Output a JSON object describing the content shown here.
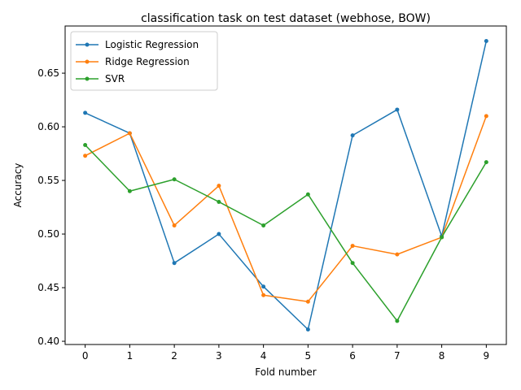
{
  "chart_data": {
    "type": "line",
    "title": "classification task on test dataset (webhose, BOW)",
    "xlabel": "Fold number",
    "ylabel": "Accuracy",
    "x": [
      0,
      1,
      2,
      3,
      4,
      5,
      6,
      7,
      8,
      9
    ],
    "xticks": [
      "0",
      "1",
      "2",
      "3",
      "4",
      "5",
      "6",
      "7",
      "8",
      "9"
    ],
    "yticks": [
      "0.40",
      "0.45",
      "0.50",
      "0.55",
      "0.60",
      "0.65"
    ],
    "ytick_values": [
      0.4,
      0.45,
      0.5,
      0.55,
      0.6,
      0.65
    ],
    "xlim": [
      -0.45,
      9.45
    ],
    "ylim": [
      0.397,
      0.694
    ],
    "grid": false,
    "legend_position": "top-left",
    "series": [
      {
        "name": "Logistic Regression",
        "color": "#1f77b4",
        "values": [
          0.613,
          0.594,
          0.473,
          0.5,
          0.451,
          0.411,
          0.592,
          0.616,
          0.498,
          0.68
        ]
      },
      {
        "name": "Ridge Regression",
        "color": "#ff7f0e",
        "values": [
          0.573,
          0.594,
          0.508,
          0.545,
          0.443,
          0.437,
          0.489,
          0.481,
          0.497,
          0.61
        ]
      },
      {
        "name": "SVR",
        "color": "#2ca02c",
        "values": [
          0.583,
          0.54,
          0.551,
          0.53,
          0.508,
          0.537,
          0.473,
          0.419,
          0.497,
          0.567
        ]
      }
    ]
  }
}
